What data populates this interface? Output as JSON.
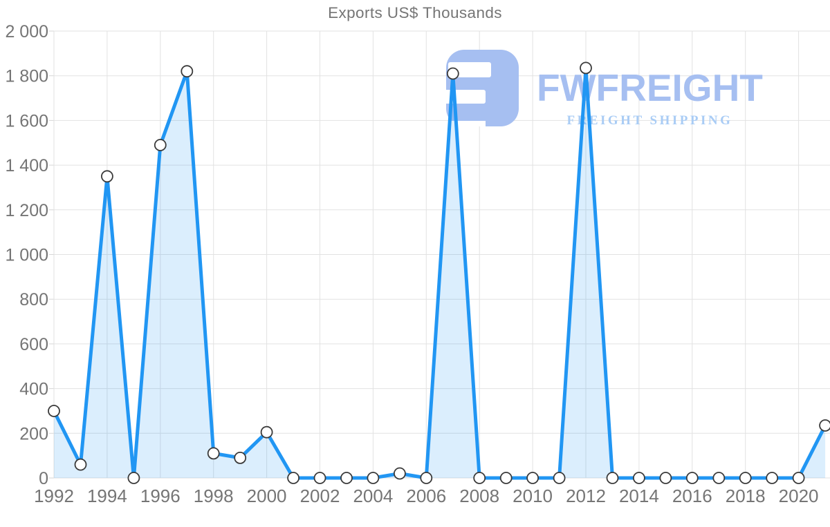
{
  "title": "Exports US$ Thousands",
  "watermark": {
    "brand": "FWFREIGHT",
    "tagline": "FREIGHT SHIPPING",
    "icon": "fwfreight-block-3-icon"
  },
  "colors": {
    "line": "#2196f3",
    "area_fill": "rgba(33,150,243,0.16)",
    "grid": "#e2e2e2",
    "tick": "#d6d6d6",
    "axis_label": "#757575",
    "title_text": "#757575",
    "marker_fill": "#ffffff",
    "marker_stroke": "#3a3a3a",
    "logo_fill": "#a6bff1",
    "logo_tagline": "#a9ccf5"
  },
  "chart_data": {
    "type": "area",
    "title": "Exports US$ Thousands",
    "xlabel": "",
    "ylabel": "",
    "x": [
      1992,
      1993,
      1994,
      1995,
      1996,
      1997,
      1998,
      1999,
      2000,
      2001,
      2002,
      2003,
      2004,
      2005,
      2006,
      2007,
      2008,
      2009,
      2010,
      2011,
      2012,
      2013,
      2014,
      2015,
      2016,
      2017,
      2018,
      2019,
      2020,
      2021
    ],
    "values": [
      300,
      60,
      1350,
      0,
      1490,
      1820,
      110,
      90,
      205,
      0,
      0,
      0,
      0,
      20,
      0,
      1810,
      0,
      0,
      0,
      0,
      1835,
      0,
      0,
      0,
      0,
      0,
      0,
      0,
      0,
      235
    ],
    "ylim": [
      0,
      2000
    ],
    "ytick_step": 200,
    "ytick_labels": [
      "0",
      "200",
      "400",
      "600",
      "800",
      "1 000",
      "1 200",
      "1 400",
      "1 600",
      "1 800",
      "2 000"
    ],
    "xtick_labels": [
      "1992",
      "1994",
      "1996",
      "1998",
      "2000",
      "2002",
      "2004",
      "2006",
      "2008",
      "2010",
      "2012",
      "2014",
      "2016",
      "2018",
      "2020"
    ],
    "grid": true,
    "legend": false,
    "marker": "circle"
  }
}
